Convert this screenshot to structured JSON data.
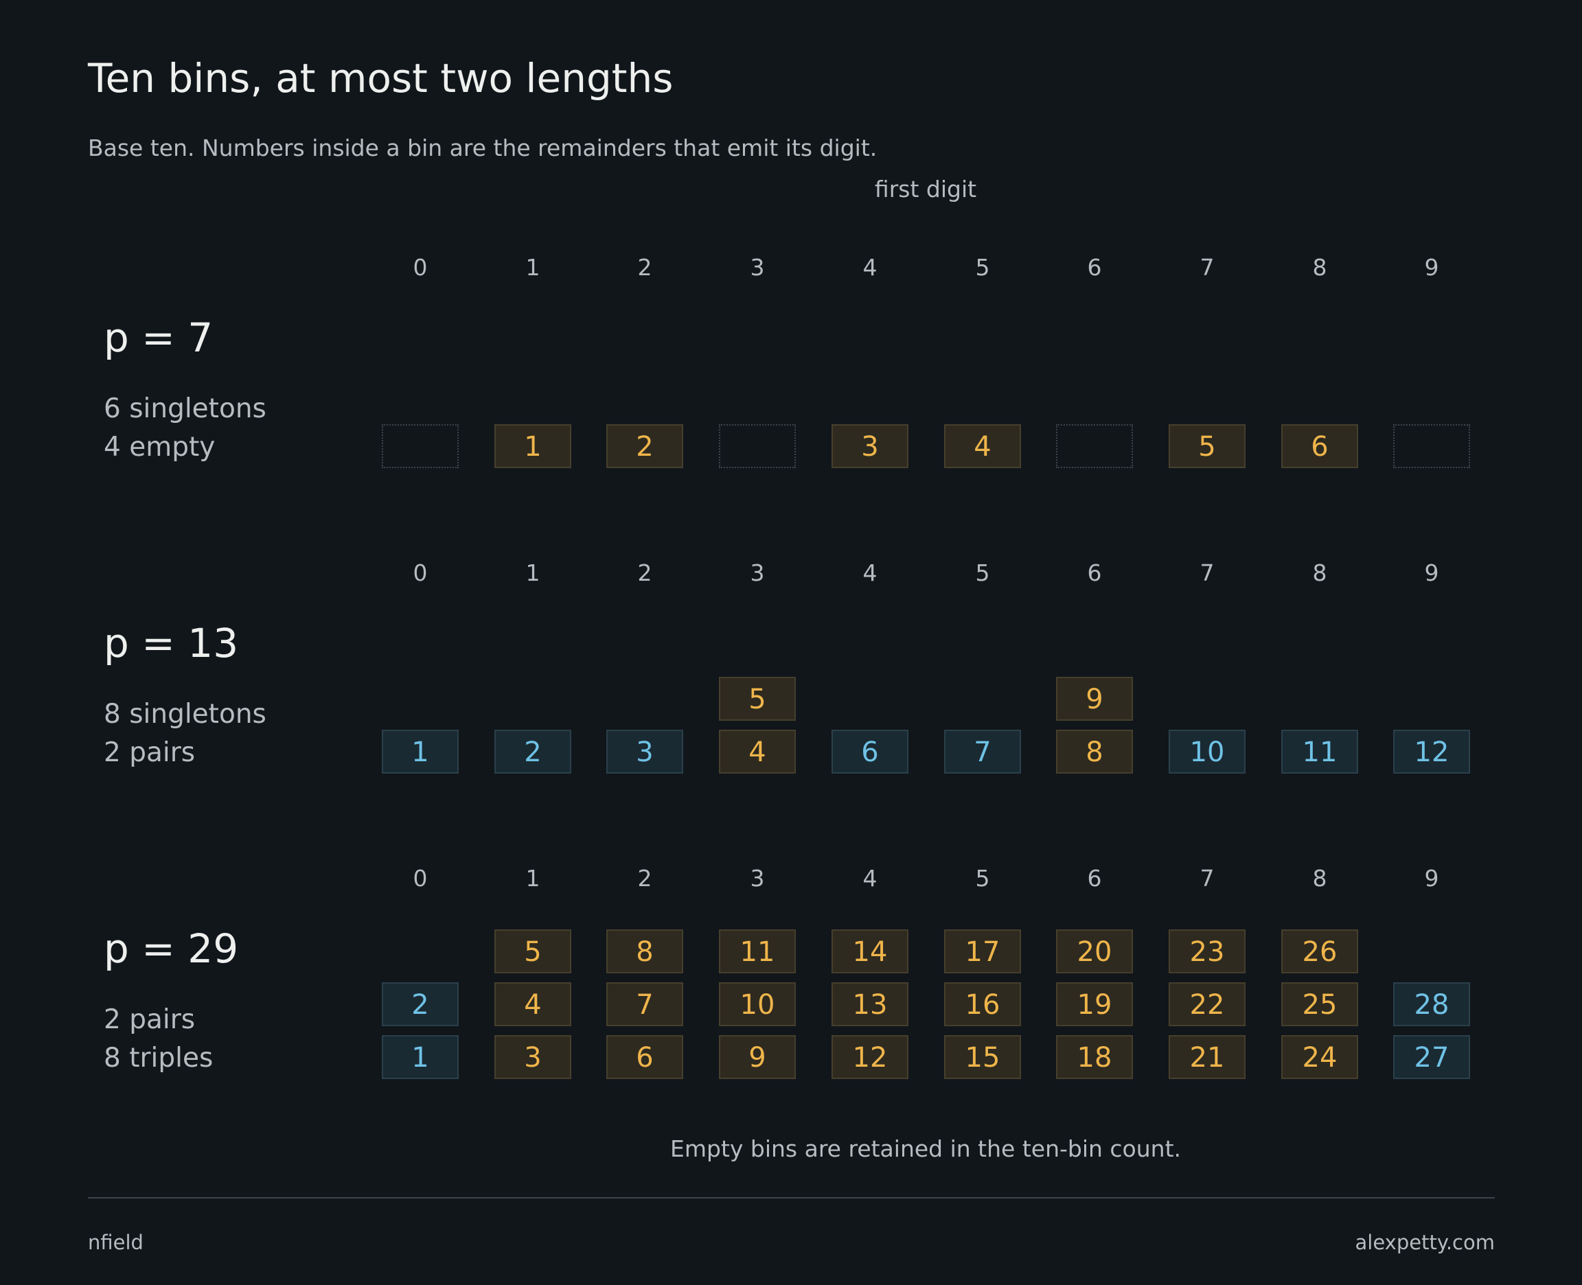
{
  "title": "Ten bins, at most two lengths",
  "subtitle": "Base ten. Numbers inside a bin are the remainders that emit its digit.",
  "axis_title": "first digit",
  "digits": [
    "0",
    "1",
    "2",
    "3",
    "4",
    "5",
    "6",
    "7",
    "8",
    "9"
  ],
  "panels": [
    {
      "label": "p = 7",
      "stats": [
        "6 singletons",
        "4 empty"
      ],
      "bins": [
        [],
        [
          1
        ],
        [
          2
        ],
        [],
        [
          3
        ],
        [
          4
        ],
        [],
        [
          5
        ],
        [
          6
        ],
        []
      ],
      "bin_colors": [
        "empty",
        "gold",
        "gold",
        "empty",
        "gold",
        "gold",
        "empty",
        "gold",
        "gold",
        "empty"
      ]
    },
    {
      "label": "p = 13",
      "stats": [
        "8 singletons",
        "2 pairs"
      ],
      "bins": [
        [
          1
        ],
        [
          2
        ],
        [
          3
        ],
        [
          4,
          5
        ],
        [
          6
        ],
        [
          7
        ],
        [
          8,
          9
        ],
        [
          10
        ],
        [
          11
        ],
        [
          12
        ]
      ],
      "bin_colors": [
        "blue",
        "blue",
        "blue",
        "gold",
        "blue",
        "blue",
        "gold",
        "blue",
        "blue",
        "blue"
      ]
    },
    {
      "label": "p = 29",
      "stats": [
        "2 pairs",
        "8 triples"
      ],
      "bins": [
        [
          1,
          2
        ],
        [
          3,
          4,
          5
        ],
        [
          6,
          7,
          8
        ],
        [
          9,
          10,
          11
        ],
        [
          12,
          13,
          14
        ],
        [
          15,
          16,
          17
        ],
        [
          18,
          19,
          20
        ],
        [
          21,
          22,
          23
        ],
        [
          24,
          25,
          26
        ],
        [
          27,
          28
        ]
      ],
      "bin_colors": [
        "blue",
        "gold",
        "gold",
        "gold",
        "gold",
        "gold",
        "gold",
        "gold",
        "gold",
        "blue"
      ]
    }
  ],
  "colors": {
    "background": "#11161b",
    "gold_text": "#efb54b",
    "gold_fill": "#2e2a1f",
    "blue_text": "#6fc2e6",
    "blue_fill": "#1a2a33"
  },
  "footnote": "Empty bins are retained in the ten-bin count.",
  "footer": {
    "left": "nfield",
    "right": "alexpetty.com"
  }
}
